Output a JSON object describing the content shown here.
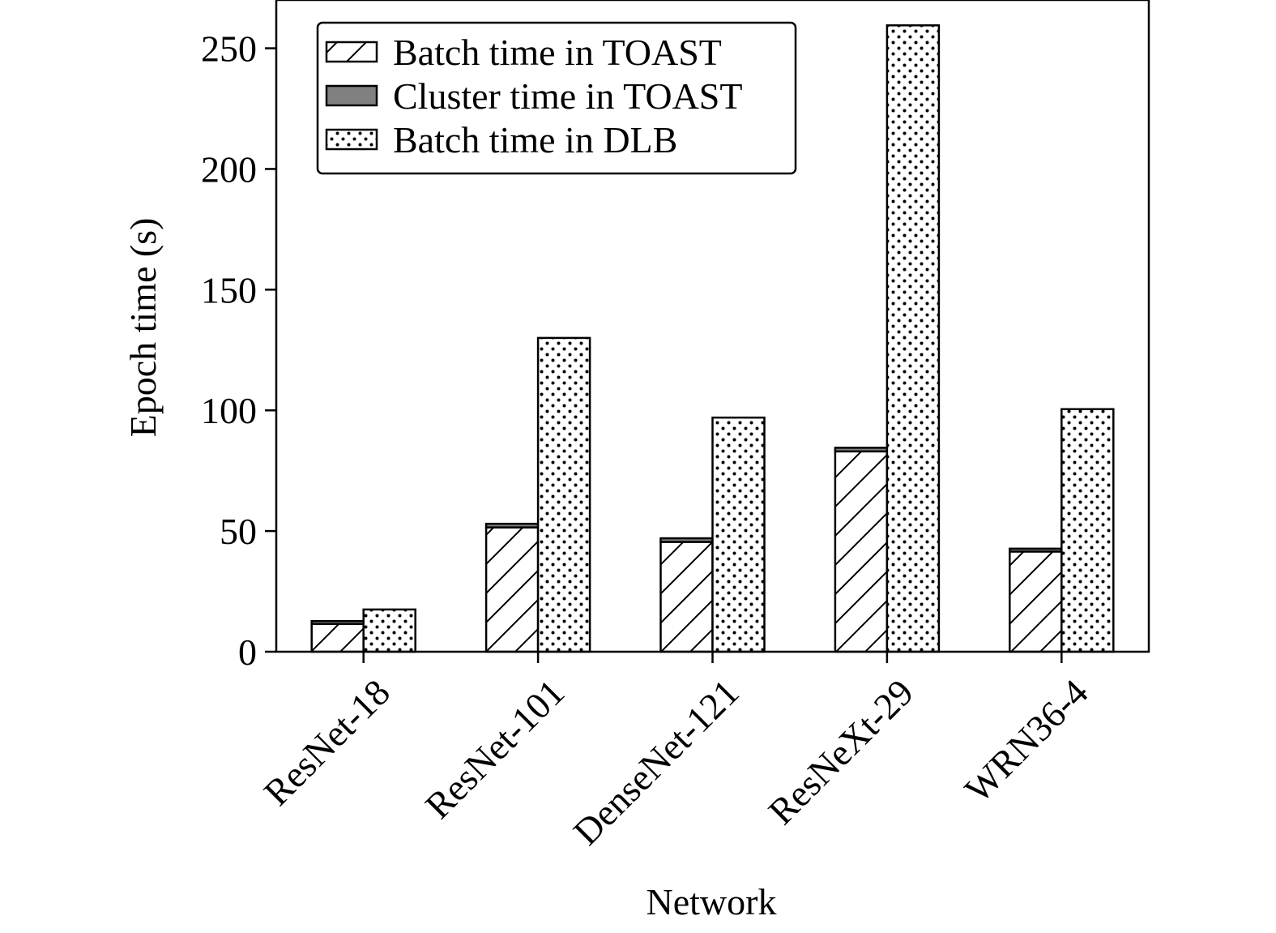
{
  "chart_data": {
    "type": "bar",
    "stacked_group": true,
    "title": "",
    "xlabel": "Network",
    "ylabel": "Epoch time (s)",
    "ylim": [
      0,
      270
    ],
    "yticks": [
      0,
      50,
      100,
      150,
      200,
      250
    ],
    "categories": [
      "ResNet-18",
      "ResNet-101",
      "DenseNet-121",
      "ResNeXt-29",
      "WRN36-4"
    ],
    "series": [
      {
        "name": "Batch time in TOAST",
        "pattern": "hatch",
        "stack": "TOAST",
        "values": [
          11.5,
          51.5,
          45.5,
          83,
          41.5
        ]
      },
      {
        "name": "Cluster time in TOAST",
        "pattern": "solid-gray",
        "stack": "TOAST",
        "values": [
          1.2,
          1.5,
          1.5,
          1.5,
          1.2
        ]
      },
      {
        "name": "Batch time in DLB",
        "pattern": "dots",
        "stack": "DLB",
        "values": [
          17.5,
          130,
          97,
          259.5,
          100.5
        ]
      }
    ],
    "legend_position": "top-left",
    "grid": false
  }
}
